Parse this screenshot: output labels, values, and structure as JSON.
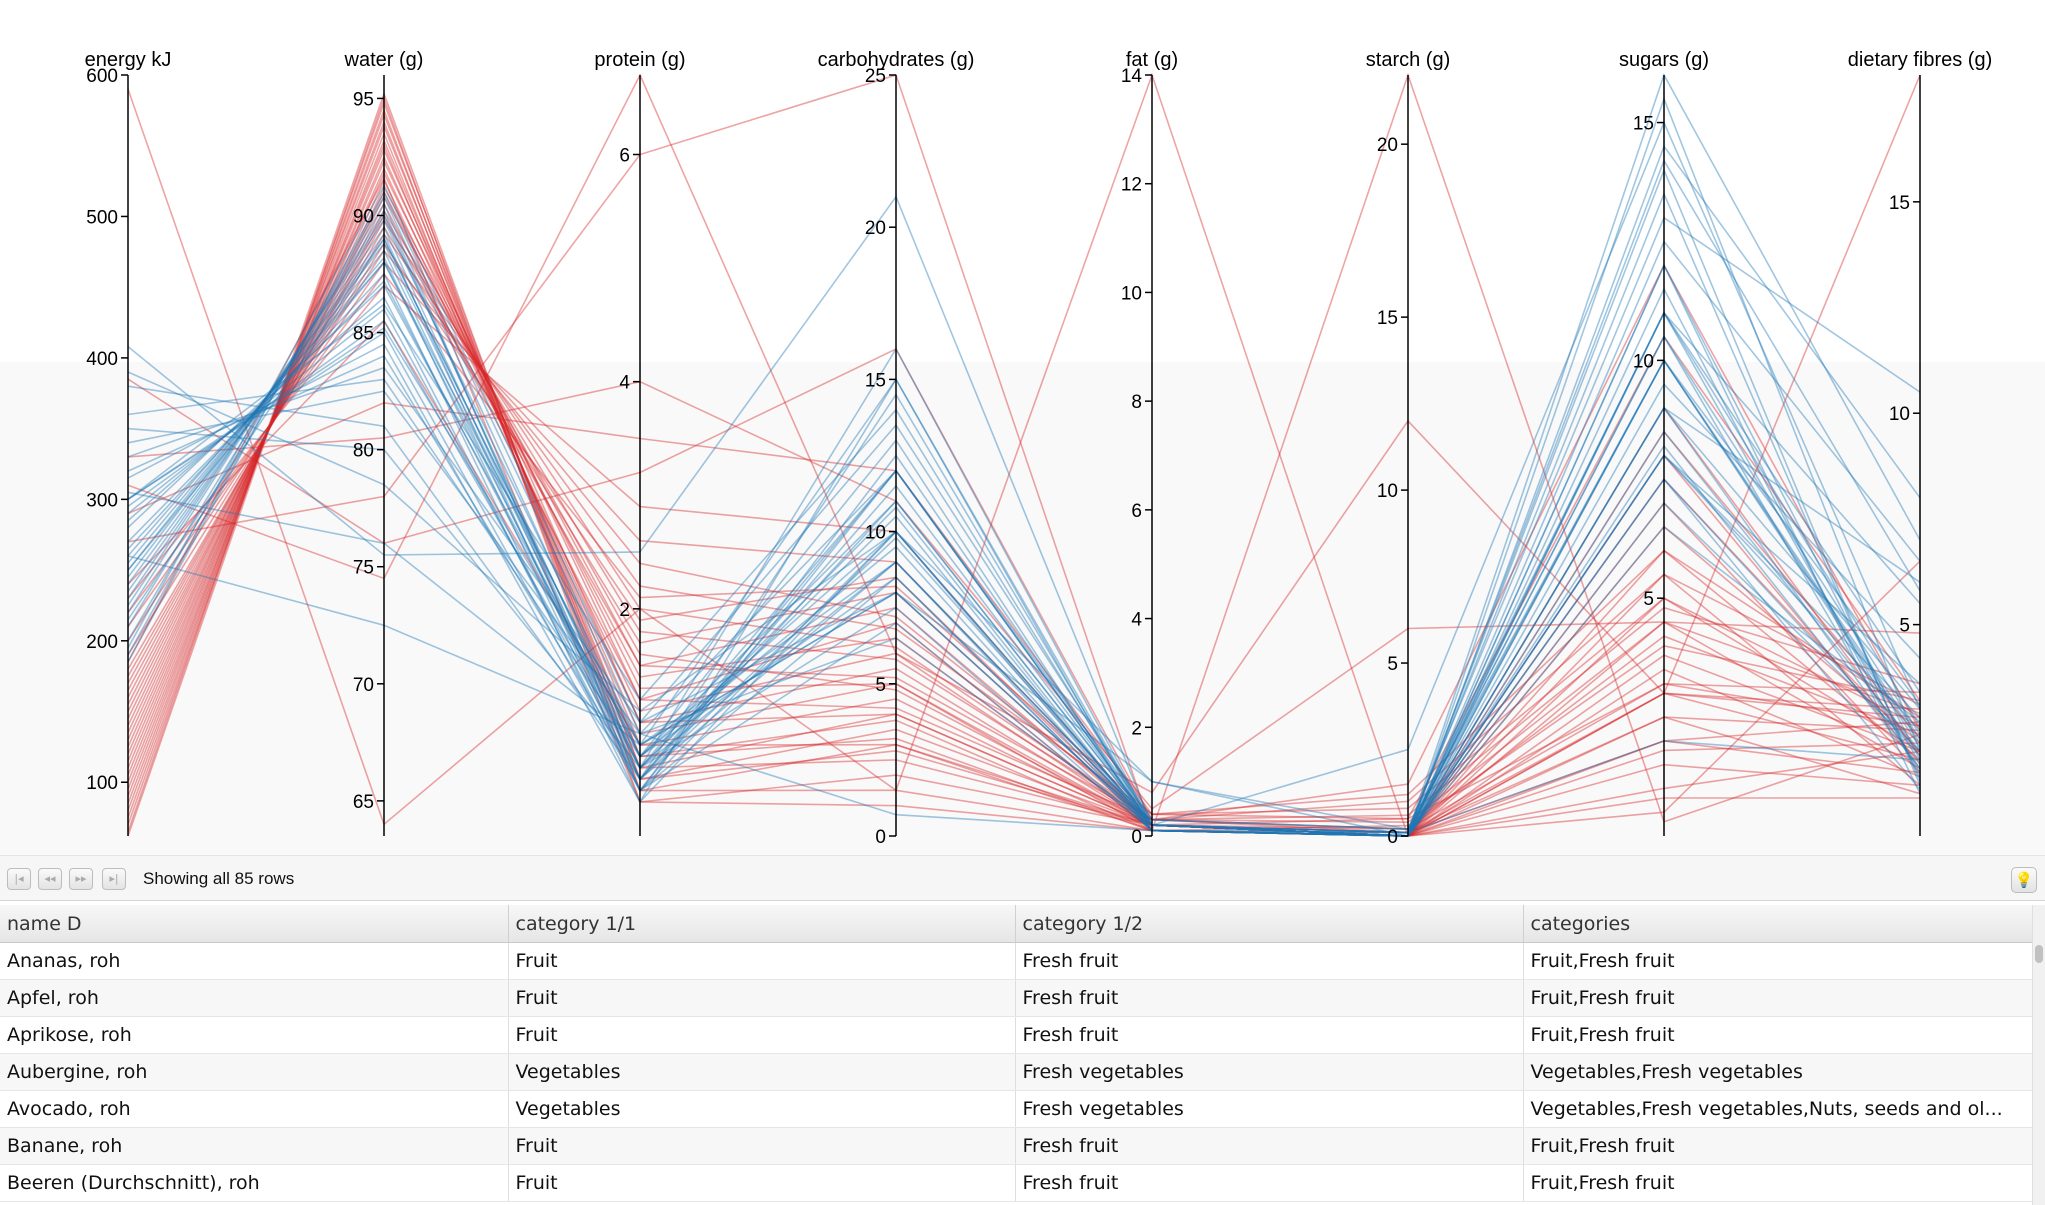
{
  "chart_data": {
    "type": "parallel-coordinates",
    "colors": {
      "fruit": "#d62728",
      "vegetables": "#1f77b4",
      "axis": "#000000"
    },
    "axes": [
      {
        "name": "energy kJ",
        "range": [
          62,
          600
        ],
        "ticks": [
          100,
          200,
          300,
          400,
          500,
          600
        ]
      },
      {
        "name": "water (g)",
        "range": [
          63.5,
          96
        ],
        "ticks": [
          65,
          70,
          75,
          80,
          85,
          90,
          95
        ]
      },
      {
        "name": "protein (g)",
        "range": [
          0,
          6.7
        ],
        "ticks": [
          2,
          4,
          6
        ]
      },
      {
        "name": "carbohydrates (g)",
        "range": [
          0,
          25
        ],
        "ticks": [
          0,
          5,
          10,
          15,
          20,
          25
        ]
      },
      {
        "name": "fat (g)",
        "range": [
          0,
          14
        ],
        "ticks": [
          0,
          2,
          4,
          6,
          8,
          10,
          12,
          14
        ]
      },
      {
        "name": "starch (g)",
        "range": [
          0,
          22
        ],
        "ticks": [
          0,
          5,
          10,
          15,
          20
        ]
      },
      {
        "name": "sugars (g)",
        "range": [
          0,
          16
        ],
        "ticks": [
          5,
          10,
          15
        ]
      },
      {
        "name": "dietary fibres (g)",
        "range": [
          0,
          18
        ],
        "ticks": [
          5,
          10,
          15
        ]
      }
    ],
    "series": [
      {
        "group": "fruit",
        "values": [
          62,
          95,
          0.3,
          2,
          0.2,
          0,
          1.5,
          1.2
        ]
      },
      {
        "group": "fruit",
        "values": [
          65,
          95.2,
          0.4,
          1.5,
          0.1,
          0,
          1.0,
          2.0
        ]
      },
      {
        "group": "fruit",
        "values": [
          70,
          94.8,
          0.5,
          2.8,
          0.2,
          0,
          2.0,
          1.5
        ]
      },
      {
        "group": "fruit",
        "values": [
          75,
          94.5,
          0.4,
          3.0,
          0.1,
          0,
          2.5,
          1.0
        ]
      },
      {
        "group": "fruit",
        "values": [
          80,
          94.3,
          0.6,
          2.5,
          0.2,
          0,
          1.8,
          2.2
        ]
      },
      {
        "group": "fruit",
        "values": [
          85,
          94.0,
          0.5,
          3.5,
          0.2,
          0,
          3.0,
          1.8
        ]
      },
      {
        "group": "fruit",
        "values": [
          90,
          93.8,
          0.7,
          3.2,
          0.1,
          0.1,
          2.5,
          2.5
        ]
      },
      {
        "group": "fruit",
        "values": [
          95,
          93.5,
          0.6,
          4.0,
          0.2,
          0,
          3.5,
          1.4
        ]
      },
      {
        "group": "fruit",
        "values": [
          100,
          93.2,
          0.8,
          4.5,
          0.2,
          0,
          3.8,
          2.0
        ]
      },
      {
        "group": "fruit",
        "values": [
          105,
          93.0,
          0.7,
          3.8,
          0.1,
          0,
          3.0,
          3.0
        ]
      },
      {
        "group": "fruit",
        "values": [
          110,
          92.8,
          1.0,
          4.0,
          0.2,
          0.2,
          3.2,
          2.6
        ]
      },
      {
        "group": "fruit",
        "values": [
          115,
          92.5,
          0.9,
          5.0,
          0.2,
          0,
          4.5,
          1.6
        ]
      },
      {
        "group": "fruit",
        "values": [
          120,
          92.3,
          1.2,
          4.2,
          0.3,
          0.1,
          3.0,
          2.8
        ]
      },
      {
        "group": "fruit",
        "values": [
          125,
          92.0,
          1.0,
          5.5,
          0.2,
          0,
          5.0,
          2.0
        ]
      },
      {
        "group": "fruit",
        "values": [
          130,
          91.8,
          1.3,
          5.0,
          0.1,
          0.3,
          4.0,
          3.2
        ]
      },
      {
        "group": "fruit",
        "values": [
          135,
          91.5,
          1.1,
          6.0,
          0.2,
          0,
          5.5,
          1.2
        ]
      },
      {
        "group": "fruit",
        "values": [
          140,
          91.2,
          1.5,
          5.2,
          0.3,
          0.2,
          4.2,
          2.4
        ]
      },
      {
        "group": "fruit",
        "values": [
          145,
          91.0,
          1.4,
          6.5,
          0.2,
          0,
          6.0,
          1.8
        ]
      },
      {
        "group": "fruit",
        "values": [
          150,
          90.8,
          1.6,
          4.8,
          0.2,
          0.5,
          3.2,
          3.4
        ]
      },
      {
        "group": "fruit",
        "values": [
          155,
          90.5,
          1.2,
          7.0,
          0.1,
          0,
          6.5,
          2.2
        ]
      },
      {
        "group": "fruit",
        "values": [
          160,
          90.2,
          1.8,
          5.8,
          0.3,
          0.4,
          4.5,
          2.9
        ]
      },
      {
        "group": "fruit",
        "values": [
          165,
          90.0,
          1.5,
          7.5,
          0.2,
          0,
          7.0,
          1.5
        ]
      },
      {
        "group": "fruit",
        "values": [
          170,
          89.8,
          2.0,
          6.2,
          0.3,
          0.6,
          4.8,
          3.6
        ]
      },
      {
        "group": "fruit",
        "values": [
          175,
          89.5,
          1.7,
          8.0,
          0.2,
          0,
          7.5,
          2.0
        ]
      },
      {
        "group": "fruit",
        "values": [
          180,
          89.2,
          2.2,
          6.8,
          0.4,
          0.8,
          5.0,
          2.6
        ]
      },
      {
        "group": "fruit",
        "values": [
          190,
          88.8,
          1.9,
          8.5,
          0.2,
          0,
          8.0,
          1.7
        ]
      },
      {
        "group": "fruit",
        "values": [
          200,
          88.5,
          2.4,
          7.2,
          0.3,
          1.0,
          5.5,
          3.1
        ]
      },
      {
        "group": "fruit",
        "values": [
          210,
          88.0,
          2.6,
          9.0,
          0.2,
          0,
          8.5,
          2.3
        ]
      },
      {
        "group": "fruit",
        "values": [
          220,
          87.5,
          2.1,
          8.2,
          0.4,
          1.2,
          6.0,
          2.8
        ]
      },
      {
        "group": "fruit",
        "values": [
          230,
          87.0,
          2.9,
          10.0,
          0.2,
          0,
          9.0,
          1.9
        ]
      },
      {
        "group": "fruit",
        "values": [
          290,
          82.0,
          3.5,
          12.0,
          0.4,
          0.5,
          10.5,
          3.2
        ]
      },
      {
        "group": "fruit",
        "values": [
          330,
          80.5,
          4.0,
          11.0,
          0.5,
          6.0,
          4.5,
          4.8
        ]
      },
      {
        "group": "fruit",
        "values": [
          385,
          76.0,
          3.2,
          16.0,
          0.3,
          1.5,
          12.0,
          2.5
        ]
      },
      {
        "group": "fruit",
        "values": [
          590,
          64.0,
          2.0,
          1.5,
          14.0,
          0,
          0.5,
          6.5
        ]
      },
      {
        "group": "fruit",
        "values": [
          310,
          74.5,
          6.7,
          6.0,
          0.8,
          12.0,
          3.0,
          18.0
        ]
      },
      {
        "group": "fruit",
        "values": [
          270,
          78.0,
          6.0,
          25.0,
          0.1,
          22.0,
          0.3,
          2.4
        ]
      },
      {
        "group": "fruit",
        "values": [
          240,
          85.5,
          0.8,
          3.0,
          0.2,
          0.1,
          2.0,
          2.7
        ]
      },
      {
        "group": "fruit",
        "values": [
          185,
          91.6,
          0.3,
          1.0,
          0.1,
          0,
          0.8,
          0.9
        ]
      },
      {
        "group": "vegetables",
        "values": [
          408,
          75.5,
          2.5,
          21.0,
          0.2,
          2.5,
          15.0,
          3.0
        ]
      },
      {
        "group": "vegetables",
        "values": [
          320,
          84.0,
          0.5,
          14.5,
          0.2,
          0.1,
          14.0,
          1.2
        ]
      },
      {
        "group": "vegetables",
        "values": [
          315,
          84.5,
          0.3,
          15.0,
          0.1,
          0,
          15.5,
          2.0
        ]
      },
      {
        "group": "vegetables",
        "values": [
          300,
          85.0,
          0.4,
          12.0,
          0.2,
          0,
          12.0,
          1.8
        ]
      },
      {
        "group": "vegetables",
        "values": [
          295,
          85.5,
          0.6,
          10.5,
          0.1,
          0,
          11.0,
          2.6
        ]
      },
      {
        "group": "vegetables",
        "values": [
          290,
          86.0,
          0.5,
          11.0,
          0.2,
          0.1,
          10.5,
          1.5
        ]
      },
      {
        "group": "vegetables",
        "values": [
          285,
          86.5,
          0.4,
          10.0,
          0.2,
          0,
          10.0,
          2.2
        ]
      },
      {
        "group": "vegetables",
        "values": [
          280,
          87.0,
          0.7,
          9.5,
          0.1,
          0,
          9.0,
          3.0
        ]
      },
      {
        "group": "vegetables",
        "values": [
          270,
          87.2,
          0.6,
          12.0,
          0.2,
          0,
          12.0,
          1.0
        ]
      },
      {
        "group": "vegetables",
        "values": [
          265,
          87.5,
          0.3,
          10.0,
          0.1,
          0.1,
          10.5,
          2.4
        ]
      },
      {
        "group": "vegetables",
        "values": [
          260,
          88.0,
          0.8,
          9.0,
          0.2,
          0,
          9.0,
          1.6
        ]
      },
      {
        "group": "vegetables",
        "values": [
          255,
          88.2,
          0.4,
          8.5,
          0.1,
          0,
          8.0,
          2.8
        ]
      },
      {
        "group": "vegetables",
        "values": [
          250,
          88.5,
          0.5,
          11.5,
          0.2,
          0.1,
          11.0,
          3.4
        ]
      },
      {
        "group": "vegetables",
        "values": [
          245,
          88.8,
          0.6,
          7.5,
          0.1,
          0,
          7.5,
          1.9
        ]
      },
      {
        "group": "vegetables",
        "values": [
          240,
          89.0,
          0.7,
          10.0,
          0.2,
          0,
          10.0,
          2.1
        ]
      },
      {
        "group": "vegetables",
        "values": [
          235,
          89.2,
          0.4,
          12.5,
          0.2,
          0.1,
          13.5,
          1.3
        ]
      },
      {
        "group": "vegetables",
        "values": [
          230,
          89.5,
          0.5,
          9.0,
          0.1,
          0,
          9.5,
          4.2
        ]
      },
      {
        "group": "vegetables",
        "values": [
          225,
          89.8,
          0.8,
          8.0,
          0.2,
          0,
          8.0,
          2.5
        ]
      },
      {
        "group": "vegetables",
        "values": [
          220,
          90.0,
          0.6,
          10.8,
          0.1,
          0,
          11.0,
          1.7
        ]
      },
      {
        "group": "vegetables",
        "values": [
          210,
          90.2,
          0.5,
          9.8,
          0.2,
          0.1,
          10.0,
          3.1
        ]
      },
      {
        "group": "vegetables",
        "values": [
          200,
          90.5,
          0.4,
          7.0,
          0.1,
          0,
          7.0,
          2.0
        ]
      },
      {
        "group": "vegetables",
        "values": [
          190,
          90.8,
          0.7,
          11.0,
          0.2,
          0,
          11.5,
          1.4
        ]
      },
      {
        "group": "vegetables",
        "values": [
          185,
          91.0,
          0.9,
          6.5,
          0.2,
          0,
          6.5,
          2.7
        ]
      },
      {
        "group": "vegetables",
        "values": [
          330,
          83.5,
          1.0,
          13.5,
          0.3,
          0.2,
          13.0,
          10.5
        ]
      },
      {
        "group": "vegetables",
        "values": [
          300,
          85.2,
          0.8,
          15.0,
          0.2,
          0,
          14.5,
          8.0
        ]
      },
      {
        "group": "vegetables",
        "values": [
          350,
          80.0,
          0.6,
          16.0,
          0.2,
          0.1,
          16.0,
          7.0
        ]
      },
      {
        "group": "vegetables",
        "values": [
          360,
          83.0,
          0.7,
          13.0,
          0.1,
          0,
          12.5,
          6.5
        ]
      },
      {
        "group": "vegetables",
        "values": [
          340,
          82.5,
          0.9,
          12.0,
          0.2,
          0,
          9.0,
          6.0
        ]
      },
      {
        "group": "vegetables",
        "values": [
          300,
          86.2,
          1.2,
          14.0,
          0.2,
          0.1,
          14.2,
          5.8
        ]
      },
      {
        "group": "vegetables",
        "values": [
          380,
          81.0,
          0.5,
          12.0,
          0.3,
          0.2,
          11.0,
          5.5
        ]
      },
      {
        "group": "vegetables",
        "values": [
          250,
          88.0,
          0.6,
          9.0,
          0.2,
          0,
          8.5,
          2.0
        ]
      },
      {
        "group": "vegetables",
        "values": [
          215,
          89.0,
          0.7,
          8.5,
          0.1,
          0,
          8.2,
          1.6
        ]
      },
      {
        "group": "vegetables",
        "values": [
          305,
          76.0,
          0.8,
          8.0,
          0.2,
          0,
          8.0,
          3.6
        ]
      },
      {
        "group": "vegetables",
        "values": [
          260,
          72.5,
          0.9,
          0.7,
          0.1,
          0.1,
          2.0,
          1.8
        ]
      },
      {
        "group": "vegetables",
        "values": [
          390,
          78.5,
          1.1,
          10.0,
          1.0,
          0.2,
          10.0,
          2.3
        ]
      },
      {
        "group": "vegetables",
        "values": [
          195,
          91.3,
          1.0,
          8.0,
          1.0,
          0,
          7.5,
          1.1
        ]
      }
    ]
  },
  "pager": {
    "status": "Showing all 85 rows"
  },
  "table": {
    "columns": [
      "name D",
      "category 1/1",
      "category 1/2",
      "categories"
    ],
    "rows": [
      [
        "Ananas, roh",
        "Fruit",
        "Fresh fruit",
        "Fruit,Fresh fruit"
      ],
      [
        "Apfel, roh",
        "Fruit",
        "Fresh fruit",
        "Fruit,Fresh fruit"
      ],
      [
        "Aprikose, roh",
        "Fruit",
        "Fresh fruit",
        "Fruit,Fresh fruit"
      ],
      [
        "Aubergine, roh",
        "Vegetables",
        "Fresh vegetables",
        "Vegetables,Fresh vegetables"
      ],
      [
        "Avocado, roh",
        "Vegetables",
        "Fresh vegetables",
        "Vegetables,Fresh vegetables,Nuts, seeds and ol..."
      ],
      [
        "Banane, roh",
        "Fruit",
        "Fresh fruit",
        "Fruit,Fresh fruit"
      ],
      [
        "Beeren (Durchschnitt), roh",
        "Fruit",
        "Fresh fruit",
        "Fruit,Fresh fruit"
      ]
    ]
  }
}
